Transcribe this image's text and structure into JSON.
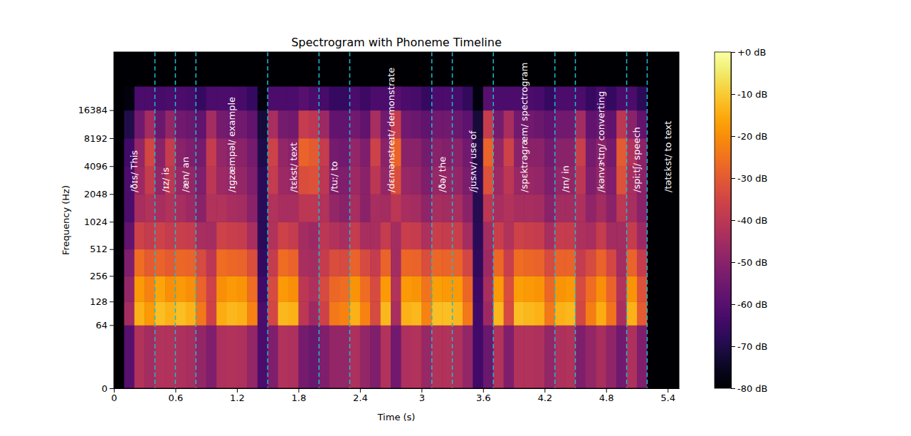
{
  "chart_data": {
    "type": "heatmap",
    "title": "Spectrogram with Phoneme Timeline",
    "x_label": "Time (s)",
    "y_label": "Frequency (Hz)",
    "log": "y",
    "xlim": [
      0,
      5.51
    ],
    "xticks": [
      0,
      0.6,
      1.2,
      1.8,
      2.4,
      3,
      3.6,
      4.2,
      4.8,
      5.4
    ],
    "ylim": [
      0,
      69000
    ],
    "yticks": [
      0,
      64,
      128,
      256,
      512,
      1024,
      2048,
      4096,
      8192,
      16384
    ],
    "x_bins": [
      0,
      0.1,
      0.2,
      0.3,
      0.4,
      0.5,
      0.6,
      0.7,
      0.8,
      0.9,
      1,
      1.1,
      1.2,
      1.3,
      1.4,
      1.5,
      1.6,
      1.7,
      1.8,
      1.9,
      2,
      2.1,
      2.2,
      2.3,
      2.4,
      2.5,
      2.6,
      2.7,
      2.8,
      2.9,
      3,
      3.1,
      3.2,
      3.3,
      3.4,
      3.5,
      3.6,
      3.7,
      3.8,
      3.9,
      4,
      4.1,
      4.2,
      4.3,
      4.4,
      4.5,
      4.6,
      4.7,
      4.8,
      4.9,
      5,
      5.1,
      5.2,
      5.3,
      5.4,
      5.5
    ],
    "y_bins": [
      0,
      64,
      128,
      256,
      512,
      1024,
      2048,
      4096,
      8192,
      16384,
      29400
    ],
    "cells": [
      [
        -80,
        -80,
        -80,
        -80,
        -80,
        -80,
        -80,
        -80,
        -80,
        -80
      ],
      [
        -60,
        -45,
        -48,
        -52,
        -58,
        -62,
        -62,
        -64,
        -70,
        -78
      ],
      [
        -42,
        -14,
        -18,
        -26,
        -36,
        -44,
        -46,
        -48,
        -55,
        -62
      ],
      [
        -45,
        -18,
        -22,
        -30,
        -38,
        -42,
        -38,
        -35,
        -45,
        -62
      ],
      [
        -42,
        -12,
        -16,
        -28,
        -36,
        -44,
        -48,
        -50,
        -56,
        -63
      ],
      [
        -42,
        -14,
        -20,
        -30,
        -38,
        -42,
        -40,
        -38,
        -48,
        -62
      ],
      [
        -43,
        -12,
        -18,
        -27,
        -37,
        -44,
        -47,
        -50,
        -55,
        -62
      ],
      [
        -44,
        -14,
        -20,
        -28,
        -38,
        -46,
        -48,
        -52,
        -56,
        -63
      ],
      [
        -48,
        -24,
        -28,
        -34,
        -44,
        -50,
        -52,
        -54,
        -58,
        -66
      ],
      [
        -52,
        -36,
        -36,
        -40,
        -45,
        -42,
        -40,
        -38,
        -45,
        -62
      ],
      [
        -43,
        -15,
        -20,
        -26,
        -36,
        -42,
        -46,
        -48,
        -54,
        -62
      ],
      [
        -42,
        -13,
        -18,
        -27,
        -37,
        -44,
        -47,
        -50,
        -55,
        -62
      ],
      [
        -43,
        -14,
        -19,
        -28,
        -38,
        -45,
        -48,
        -50,
        -55,
        -63
      ],
      [
        -48,
        -22,
        -26,
        -33,
        -44,
        -50,
        -52,
        -54,
        -58,
        -66
      ],
      [
        -62,
        -62,
        -64,
        -66,
        -68,
        -68,
        -68,
        -70,
        -72,
        -78
      ],
      [
        -52,
        -35,
        -34,
        -38,
        -42,
        -42,
        -38,
        -36,
        -44,
        -62
      ],
      [
        -42,
        -13,
        -18,
        -26,
        -36,
        -44,
        -46,
        -48,
        -54,
        -62
      ],
      [
        -43,
        -14,
        -20,
        -28,
        -38,
        -44,
        -47,
        -50,
        -55,
        -62
      ],
      [
        -54,
        -40,
        -40,
        -44,
        -45,
        -40,
        -33,
        -28,
        -38,
        -60
      ],
      [
        -56,
        -46,
        -43,
        -45,
        -46,
        -40,
        -32,
        -30,
        -40,
        -62
      ],
      [
        -52,
        -36,
        -34,
        -38,
        -40,
        -42,
        -40,
        -38,
        -46,
        -63
      ],
      [
        -48,
        -24,
        -27,
        -33,
        -42,
        -48,
        -52,
        -54,
        -58,
        -66
      ],
      [
        -48,
        -22,
        -26,
        -34,
        -44,
        -50,
        -52,
        -55,
        -58,
        -66
      ],
      [
        -43,
        -14,
        -19,
        -28,
        -38,
        -44,
        -46,
        -48,
        -55,
        -62
      ],
      [
        -48,
        -22,
        -26,
        -34,
        -44,
        -50,
        -50,
        -52,
        -58,
        -65
      ],
      [
        -52,
        -34,
        -34,
        -38,
        -44,
        -44,
        -40,
        -36,
        -44,
        -62
      ],
      [
        -42,
        -13,
        -18,
        -28,
        -38,
        -45,
        -48,
        -50,
        -55,
        -62
      ],
      [
        -55,
        -44,
        -42,
        -45,
        -45,
        -40,
        -33,
        -28,
        -38,
        -60
      ],
      [
        -43,
        -14,
        -18,
        -27,
        -37,
        -44,
        -47,
        -50,
        -55,
        -62
      ],
      [
        -42,
        -13,
        -19,
        -28,
        -38,
        -45,
        -48,
        -50,
        -56,
        -63
      ],
      [
        -47,
        -22,
        -25,
        -33,
        -43,
        -49,
        -52,
        -54,
        -58,
        -66
      ],
      [
        -42,
        -12,
        -17,
        -27,
        -37,
        -44,
        -47,
        -50,
        -55,
        -62
      ],
      [
        -42,
        -12,
        -18,
        -28,
        -38,
        -45,
        -48,
        -51,
        -55,
        -62
      ],
      [
        -43,
        -13,
        -18,
        -28,
        -37,
        -44,
        -48,
        -50,
        -56,
        -63
      ],
      [
        -48,
        -24,
        -27,
        -35,
        -45,
        -50,
        -53,
        -55,
        -59,
        -67
      ],
      [
        -64,
        -64,
        -65,
        -67,
        -68,
        -69,
        -68,
        -70,
        -72,
        -78
      ],
      [
        -56,
        -46,
        -44,
        -46,
        -45,
        -40,
        -32,
        -28,
        -38,
        -60
      ],
      [
        -42,
        -13,
        -18,
        -27,
        -37,
        -44,
        -46,
        -48,
        -54,
        -62
      ],
      [
        -52,
        -34,
        -33,
        -37,
        -42,
        -42,
        -40,
        -36,
        -44,
        -62
      ],
      [
        -42,
        -12,
        -17,
        -26,
        -36,
        -44,
        -47,
        -50,
        -55,
        -62
      ],
      [
        -42,
        -13,
        -18,
        -27,
        -37,
        -44,
        -47,
        -50,
        -55,
        -62
      ],
      [
        -43,
        -14,
        -19,
        -28,
        -38,
        -45,
        -48,
        -50,
        -56,
        -63
      ],
      [
        -48,
        -24,
        -27,
        -34,
        -44,
        -50,
        -52,
        -54,
        -58,
        -66
      ],
      [
        -43,
        -14,
        -19,
        -28,
        -38,
        -45,
        -48,
        -50,
        -55,
        -62
      ],
      [
        -42,
        -13,
        -18,
        -28,
        -38,
        -45,
        -48,
        -50,
        -55,
        -62
      ],
      [
        -52,
        -35,
        -34,
        -38,
        -43,
        -43,
        -40,
        -37,
        -45,
        -62
      ],
      [
        -48,
        -23,
        -26,
        -34,
        -44,
        -49,
        -52,
        -54,
        -58,
        -66
      ],
      [
        -44,
        -15,
        -20,
        -28,
        -38,
        -45,
        -48,
        -50,
        -56,
        -63
      ],
      [
        -49,
        -25,
        -28,
        -35,
        -45,
        -50,
        -52,
        -54,
        -58,
        -66
      ],
      [
        -55,
        -44,
        -42,
        -45,
        -45,
        -40,
        -32,
        -30,
        -40,
        -62
      ],
      [
        -43,
        -14,
        -19,
        -28,
        -38,
        -44,
        -44,
        -42,
        -50,
        -62
      ],
      [
        -52,
        -30,
        -32,
        -38,
        -46,
        -50,
        -50,
        -50,
        -58,
        -68
      ],
      [
        -80,
        -80,
        -80,
        -80,
        -80,
        -80,
        -80,
        -80,
        -80,
        -80
      ],
      [
        -80,
        -80,
        -80,
        -80,
        -80,
        -80,
        -80,
        -80,
        -80,
        -80
      ],
      [
        -80,
        -80,
        -80,
        -80,
        -80,
        -80,
        -80,
        -80,
        -80,
        -80
      ]
    ],
    "colorbar": {
      "range": [
        -80,
        0
      ],
      "ticks": [
        {
          "value": 0,
          "label": "+0 dB"
        },
        {
          "value": -10,
          "label": "-10 dB"
        },
        {
          "value": -20,
          "label": "-20 dB"
        },
        {
          "value": -30,
          "label": "-30 dB"
        },
        {
          "value": -40,
          "label": "-40 dB"
        },
        {
          "value": -50,
          "label": "-50 dB"
        },
        {
          "value": -60,
          "label": "-60 dB"
        },
        {
          "value": -70,
          "label": "-70 dB"
        },
        {
          "value": -80,
          "label": "-80 dB"
        }
      ]
    },
    "annotations": {
      "color": "#17becf",
      "line_style": "dashed",
      "items": [
        {
          "text": "/ðɪs/ This",
          "start": 0,
          "end": 0.4
        },
        {
          "text": "/ɪz/ is",
          "start": 0.4,
          "end": 0.6
        },
        {
          "text": "/æn/ an",
          "start": 0.6,
          "end": 0.8
        },
        {
          "text": "/ɪɡzæmpəl/ example",
          "start": 0.8,
          "end": 1.5
        },
        {
          "text": "/tɛkst/ text",
          "start": 1.5,
          "end": 2.0
        },
        {
          "text": "/tuː/ to",
          "start": 2.0,
          "end": 2.3
        },
        {
          "text": "/dɛmənstreɪt/ demonstrate",
          "start": 2.3,
          "end": 3.1
        },
        {
          "text": "/ðə/ the",
          "start": 3.1,
          "end": 3.3
        },
        {
          "text": "/jusʌv/ use of",
          "start": 3.3,
          "end": 3.7
        },
        {
          "text": "/spɛktrəɡræm/ spectrogram",
          "start": 3.7,
          "end": 4.3
        },
        {
          "text": "/ɪn/ in",
          "start": 4.3,
          "end": 4.5
        },
        {
          "text": "/kənvɝtɪŋ/ converting",
          "start": 4.5,
          "end": 5.0
        },
        {
          "text": "/spiːtʃ/ speech",
          "start": 5.0,
          "end": 5.2
        },
        {
          "text": "/tətɛkst/ to text",
          "start": 5.2,
          "end": 5.6
        }
      ]
    }
  }
}
